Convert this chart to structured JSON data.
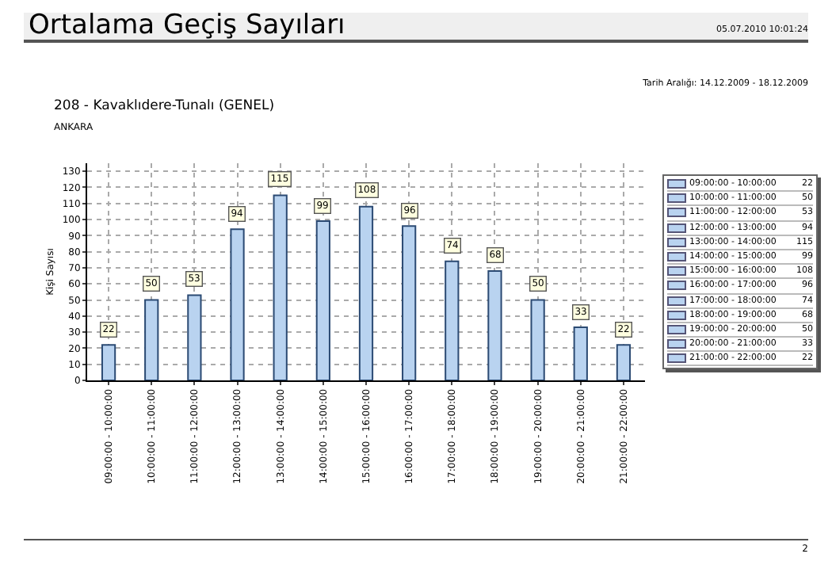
{
  "chart_data": {
    "type": "bar",
    "title": "Ortalama Geçiş Sayıları",
    "subtitle": "208 - Kavaklıdere-Tunalı (GENEL)",
    "annotations": [
      "05.07.2010 10:01:24",
      "ANKARA",
      "Tarih Aralığı: 14.12.2009 - 18.12.2009",
      "2"
    ],
    "ylabel": "Kişi Sayısı",
    "categories": [
      "09:00:00 - 10:00:00",
      "10:00:00 - 11:00:00",
      "11:00:00 - 12:00:00",
      "12:00:00 - 13:00:00",
      "13:00:00 - 14:00:00",
      "14:00:00 - 15:00:00",
      "15:00:00 - 16:00:00",
      "16:00:00 - 17:00:00",
      "17:00:00 - 18:00:00",
      "18:00:00 - 19:00:00",
      "19:00:00 - 20:00:00",
      "20:00:00 - 21:00:00",
      "21:00:00 - 22:00:00"
    ],
    "values": [
      22,
      50,
      53,
      94,
      115,
      99,
      108,
      96,
      74,
      68,
      50,
      33,
      22
    ],
    "color": "#b9d3f0",
    "ylim": [
      0,
      135
    ],
    "yticks": [
      0,
      10,
      20,
      30,
      40,
      50,
      60,
      70,
      80,
      90,
      100,
      110,
      120,
      130
    ],
    "value_labels": [
      "22",
      "50",
      "53",
      "94",
      "115",
      "99",
      "108",
      "96",
      "74",
      "68",
      "50",
      "33",
      "22"
    ],
    "grid": true
  }
}
